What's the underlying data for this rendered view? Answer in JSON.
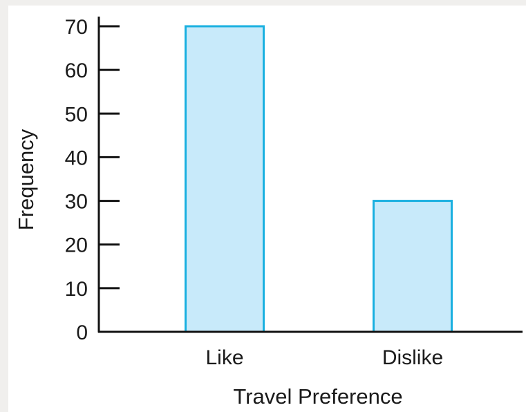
{
  "chart_data": {
    "type": "bar",
    "categories": [
      "Like",
      "Dislike"
    ],
    "values": [
      70,
      30
    ],
    "title": "",
    "xlabel": "Travel Preference",
    "ylabel": "Frequency",
    "ylim": [
      0,
      70
    ],
    "yticks": [
      0,
      10,
      20,
      30,
      40,
      50,
      60,
      70
    ],
    "grid": false,
    "legend": "none",
    "colors": {
      "bar_fill": "#c8eafa",
      "bar_stroke": "#1ab0e0",
      "axis": "#111111"
    }
  }
}
